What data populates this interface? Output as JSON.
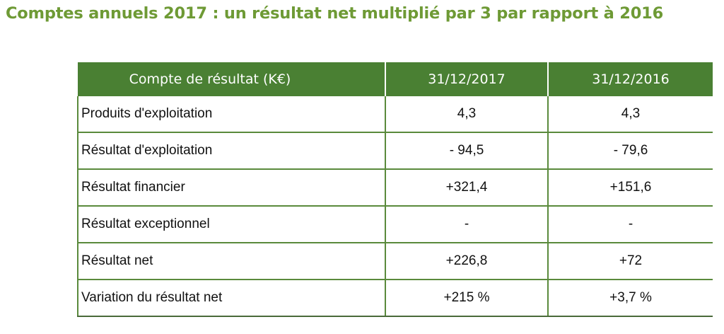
{
  "title": "Comptes annuels 2017 : un résultat net multiplié par 3 par rapport à 2016",
  "table": {
    "headers": [
      "Compte de résultat (K€)",
      "31/12/2017",
      "31/12/2016"
    ],
    "rows": [
      {
        "label": "Produits d'exploitation",
        "y2017": "4,3",
        "y2016": "4,3"
      },
      {
        "label": "Résultat d'exploitation",
        "y2017": "- 94,5",
        "y2016": "- 79,6"
      },
      {
        "label": "Résultat financier",
        "y2017": "+321,4",
        "y2016": "+151,6"
      },
      {
        "label": "Résultat exceptionnel",
        "y2017": "-",
        "y2016": "-"
      },
      {
        "label": "Résultat net",
        "y2017": "+226,8",
        "y2016": "+72"
      },
      {
        "label": "Variation du résultat net",
        "y2017": "+215 %",
        "y2016": "+3,7 %"
      }
    ]
  },
  "colors": {
    "title": "#6e9a35",
    "header_background": "#4a8033",
    "grid": "#5a8a3c"
  }
}
